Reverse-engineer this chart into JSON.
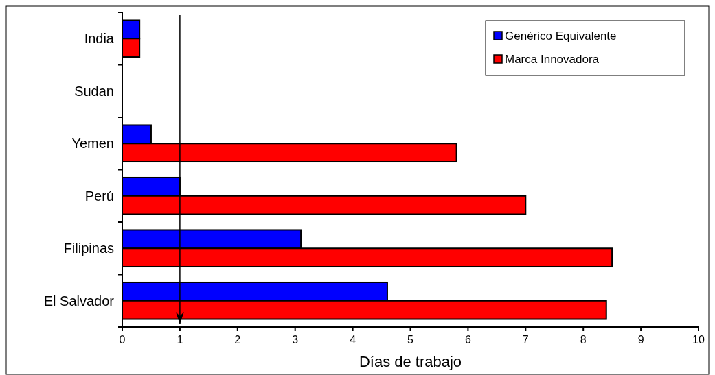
{
  "chart_data": {
    "type": "bar",
    "orientation": "horizontal",
    "xlabel": "Días de trabajo",
    "categories": [
      "India",
      "Sudan",
      "Yemen",
      "Perú",
      "Filipinas",
      "El Salvador"
    ],
    "series": [
      {
        "name": "Genérico Equivalente",
        "color": "#0000ff",
        "values": [
          0.3,
          null,
          0.5,
          1,
          3.1,
          4.6
        ]
      },
      {
        "name": "Marca Innovadora",
        "color": "#ff0000",
        "values": [
          0.3,
          null,
          5.8,
          7,
          8.5,
          8.4
        ]
      }
    ],
    "xlim": [
      0,
      10
    ],
    "xticks": [
      0,
      1,
      2,
      3,
      4,
      5,
      6,
      7,
      8,
      9,
      10
    ],
    "grid": false,
    "legend": "top right",
    "ref_lines": [
      {
        "axis": "x",
        "value": 1,
        "color": "#000000"
      }
    ]
  }
}
